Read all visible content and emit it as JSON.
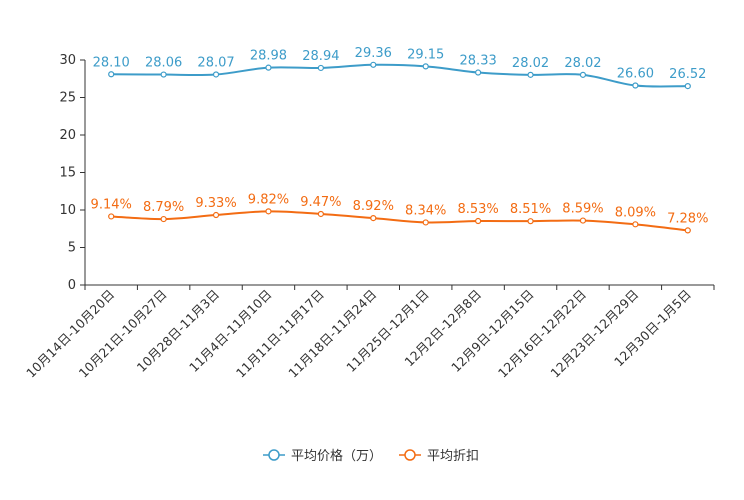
{
  "chart_data": {
    "type": "line",
    "title": "",
    "xlabel": "",
    "ylabel": "",
    "ylim": [
      0,
      30
    ],
    "yticks": [
      0,
      5,
      10,
      15,
      20,
      25,
      30
    ],
    "grid": false,
    "legend_position": "bottom-center",
    "categories": [
      "10月14日-10月20日",
      "10月21日-10月27日",
      "10月28日-11月3日",
      "11月4日-11月10日",
      "11月11日-11月17日",
      "11月18日-11月24日",
      "11月25日-12月1日",
      "12月2日-12月8日",
      "12月9日-12月15日",
      "12月16日-12月22日",
      "12月23日-12月29日",
      "12月30日-1月5日"
    ],
    "series": [
      {
        "name": "平均价格（万）",
        "color": "#3d9cc9",
        "values": [
          28.1,
          28.06,
          28.07,
          28.98,
          28.94,
          29.36,
          29.15,
          28.33,
          28.02,
          28.02,
          26.6,
          26.52
        ],
        "labels": [
          "28.10",
          "28.06",
          "28.07",
          "28.98",
          "28.94",
          "29.36",
          "29.15",
          "28.33",
          "28.02",
          "28.02",
          "26.60",
          "26.52"
        ]
      },
      {
        "name": "平均折扣",
        "color": "#f36c13",
        "values": [
          9.14,
          8.79,
          9.33,
          9.82,
          9.47,
          8.92,
          8.34,
          8.53,
          8.51,
          8.59,
          8.09,
          7.28
        ],
        "labels": [
          "9.14%",
          "8.79%",
          "9.33%",
          "9.82%",
          "9.47%",
          "8.92%",
          "8.34%",
          "8.53%",
          "8.51%",
          "8.59%",
          "8.09%",
          "7.28%"
        ]
      }
    ]
  }
}
